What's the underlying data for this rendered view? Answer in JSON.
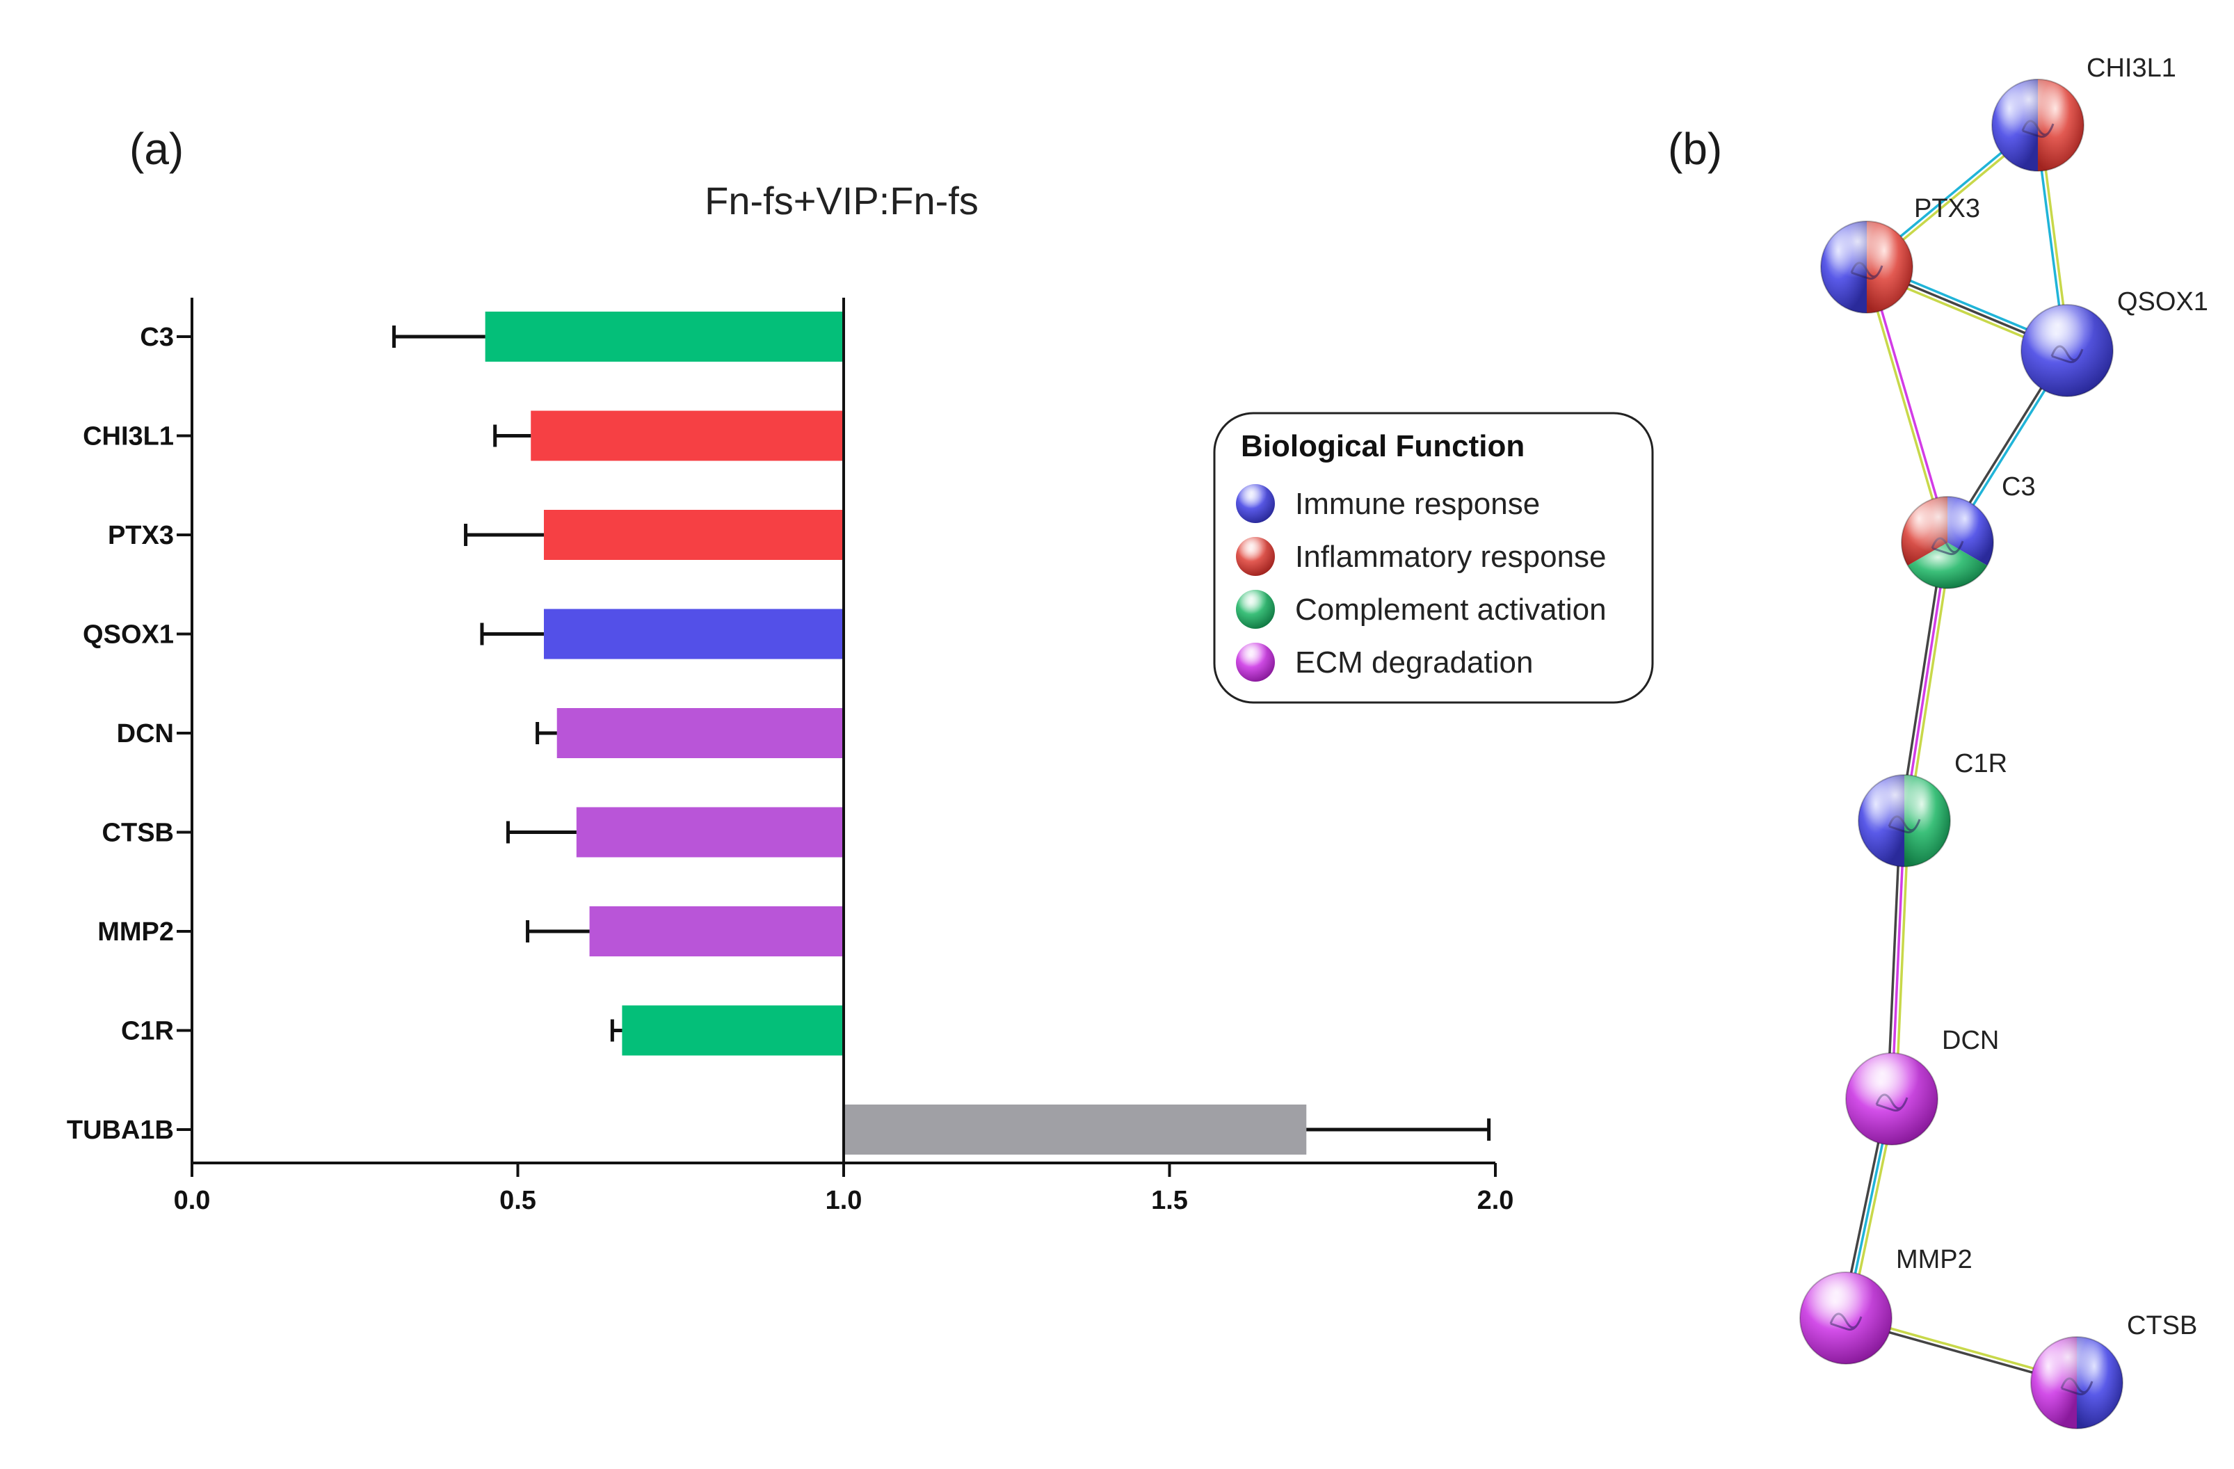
{
  "panel_a_label": "(a)",
  "panel_b_label": "(b)",
  "chart_data": {
    "type": "bar",
    "orientation": "horizontal",
    "title": "Fn-fs+VIP:Fn-fs",
    "xlabel": "",
    "ylabel": "",
    "xlim": [
      0,
      2.0
    ],
    "xticks": [
      0.0,
      0.5,
      1.0,
      1.5,
      2.0
    ],
    "xtick_labels": [
      "0.0",
      "0.5",
      "1.0",
      "1.5",
      "2.0"
    ],
    "reference_line": 1.0,
    "categories": [
      "C3",
      "CHI3L1",
      "PTX3",
      "QSOX1",
      "DCN",
      "CTSB",
      "MMP2",
      "C1R",
      "TUBA1B"
    ],
    "values": [
      0.45,
      0.52,
      0.54,
      0.54,
      0.56,
      0.59,
      0.61,
      0.66,
      1.71
    ],
    "errors": [
      0.14,
      0.055,
      0.12,
      0.095,
      0.03,
      0.105,
      0.095,
      0.015,
      0.28
    ],
    "bar_colors": [
      "#04bf79",
      "#f64044",
      "#f64044",
      "#5350e8",
      "#b955d8",
      "#b955d8",
      "#b955d8",
      "#04bf79",
      "#a0a0a5"
    ]
  },
  "legend": {
    "title": "Biological Function",
    "items": [
      {
        "label": "Immune response",
        "color": "#4a4ae6"
      },
      {
        "label": "Inflammatory response",
        "color": "#e03a32"
      },
      {
        "label": "Complement activation",
        "color": "#0fa45a"
      },
      {
        "label": "ECM degradation",
        "color": "#d21ee6"
      }
    ]
  },
  "network": {
    "nodes": [
      {
        "label": "CHI3L1",
        "functions": [
          "immune",
          "inflammatory"
        ]
      },
      {
        "label": "PTX3",
        "functions": [
          "immune",
          "inflammatory"
        ]
      },
      {
        "label": "QSOX1",
        "functions": [
          "immune"
        ]
      },
      {
        "label": "C3",
        "functions": [
          "immune",
          "complement",
          "inflammatory"
        ]
      },
      {
        "label": "C1R",
        "functions": [
          "immune",
          "complement"
        ]
      },
      {
        "label": "DCN",
        "functions": [
          "ecm"
        ]
      },
      {
        "label": "MMP2",
        "functions": [
          "ecm"
        ]
      },
      {
        "label": "CTSB",
        "functions": [
          "ecm",
          "immune"
        ]
      }
    ]
  }
}
